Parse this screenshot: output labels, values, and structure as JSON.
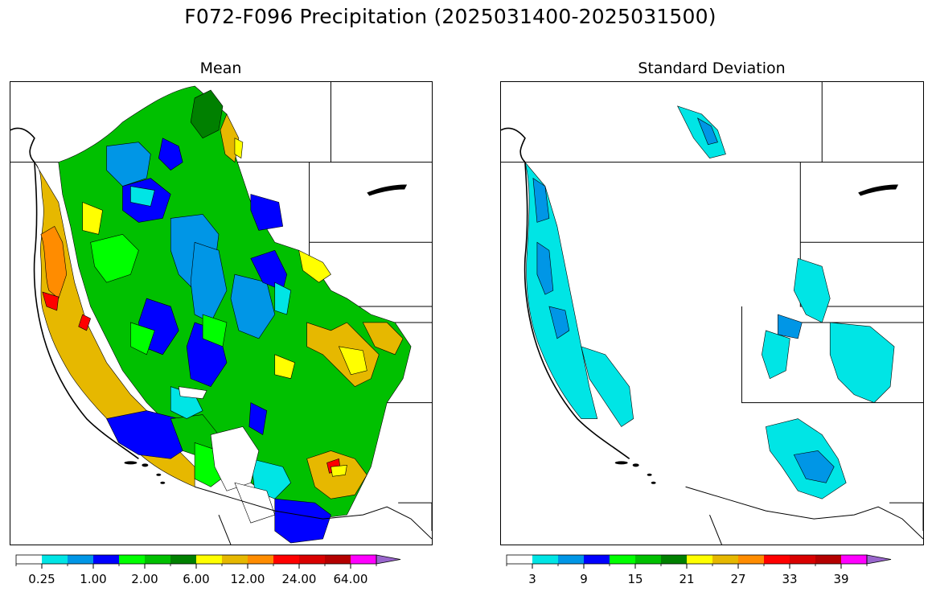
{
  "figure": {
    "title": "F072-F096 Precipitation (2025031400-2025031500)"
  },
  "panels": [
    {
      "title": "Mean",
      "colorbar": {
        "colors": [
          "#ffffff",
          "#00e5e5",
          "#0096e6",
          "#0000ff",
          "#00ff00",
          "#00c000",
          "#008000",
          "#ffff00",
          "#e6b800",
          "#ff8c00",
          "#ff0000",
          "#d90000",
          "#b40000",
          "#ff00ff",
          "#9966cc"
        ],
        "tick_labels": [
          "0.25",
          "1.00",
          "2.00",
          "6.00",
          "12.00",
          "24.00",
          "64.00"
        ],
        "tick_boundaries": [
          1,
          3,
          5,
          7,
          9,
          11,
          13
        ],
        "extend": "max"
      }
    },
    {
      "title": "Standard Deviation",
      "colorbar": {
        "colors": [
          "#ffffff",
          "#00e5e5",
          "#0096e6",
          "#0000ff",
          "#00ff00",
          "#00c000",
          "#008000",
          "#ffff00",
          "#e6b800",
          "#ff8c00",
          "#ff0000",
          "#d90000",
          "#b40000",
          "#ff00ff",
          "#9966cc"
        ],
        "tick_labels": [
          "3",
          "9",
          "15",
          "21",
          "27",
          "33",
          "39"
        ],
        "tick_boundaries": [
          1,
          3,
          5,
          7,
          9,
          11,
          13
        ],
        "extend": "max"
      }
    }
  ]
}
